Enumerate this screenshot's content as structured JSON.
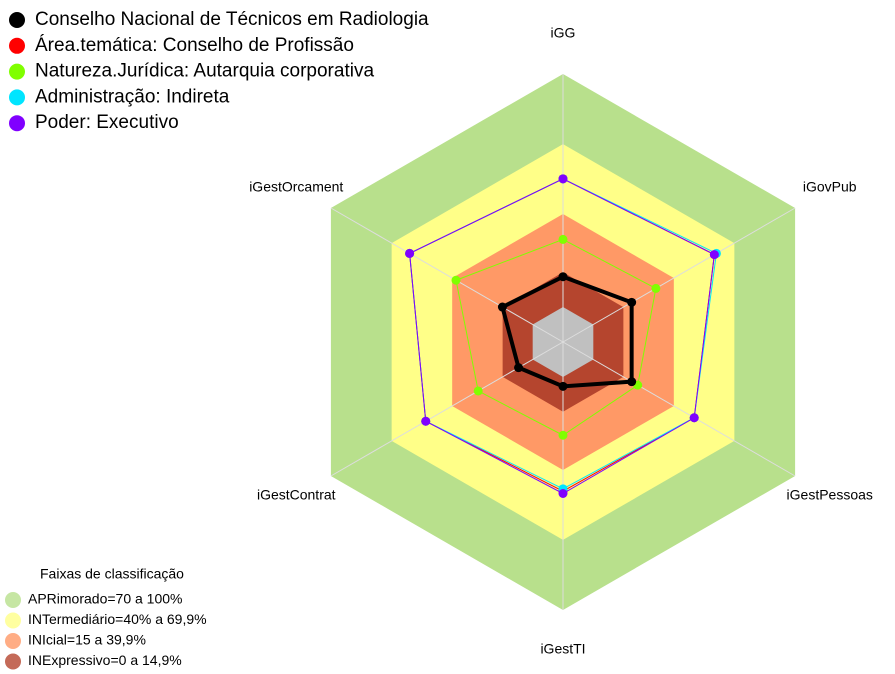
{
  "chart_data": {
    "type": "radar",
    "categories": [
      "iGG",
      "iGovPub",
      "iGestPessoas",
      "iGestTI",
      "iGestContrat",
      "iGestOrcament"
    ],
    "rlim": [
      0,
      100
    ],
    "series": [
      {
        "name": "Conselho Nacional de Técnicos em Radiologia",
        "color": "#000000",
        "values": [
          13,
          19,
          19,
          4,
          7,
          15
        ]
      },
      {
        "name": "Área.temática: Conselho de Profissão",
        "color": "#ff0000",
        "values": [
          55,
          60,
          50,
          49,
          53,
          61
        ]
      },
      {
        "name": "Natureza.Jurídica: Autarquia corporativa",
        "color": "#80ff00",
        "values": [
          29,
          31,
          22,
          25,
          27,
          38
        ]
      },
      {
        "name": "Administração: Indireta",
        "color": "#00e5ff",
        "values": [
          55,
          61,
          50,
          48,
          53,
          61
        ]
      },
      {
        "name": "Poder: Executivo",
        "color": "#8000ff",
        "values": [
          55,
          60,
          50,
          50,
          53,
          61
        ]
      }
    ],
    "bands_title": "Faixas de classificação",
    "bands": [
      {
        "label": "APRimorado=70 a 100%",
        "max": 100,
        "color": "#b8e08c"
      },
      {
        "label": "INTermediário=40% a 69,9%",
        "max": 69.9,
        "color": "#ffff88"
      },
      {
        "label": "INIcial=15 a 39,9%",
        "max": 39.9,
        "color": "#ff9966"
      },
      {
        "label": "INExpressivo=0 a 14,9%",
        "max": 14.9,
        "color": "#b5452e"
      }
    ]
  }
}
